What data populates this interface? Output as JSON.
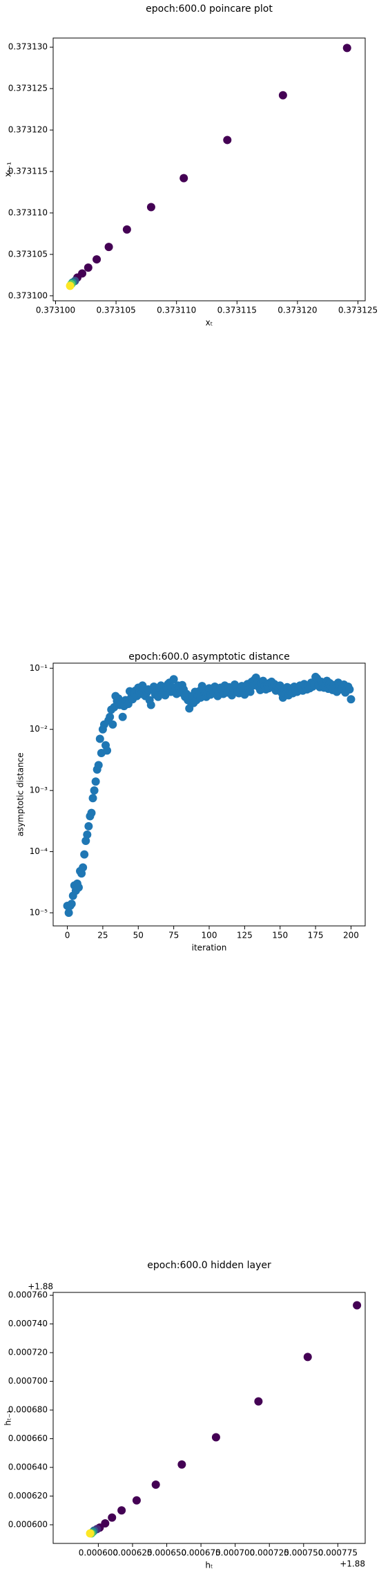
{
  "chart_data": [
    {
      "type": "scatter",
      "title": "epoch:600.0 poincare plot",
      "x_label": "xₜ",
      "y_label": "xₜ₋₁",
      "x": [
        0.3731241,
        0.3731188,
        0.3731142,
        0.3731106,
        0.3731079,
        0.3731059,
        0.3731044,
        0.3731034,
        0.3731027,
        0.3731022,
        0.3731018,
        0.3731016,
        0.3731014,
        0.3731013,
        0.3731012
      ],
      "values": [
        0.3731299,
        0.3731242,
        0.3731188,
        0.3731142,
        0.3731107,
        0.373108,
        0.3731059,
        0.3731044,
        0.3731034,
        0.3731027,
        0.3731022,
        0.3731018,
        0.3731016,
        0.3731014,
        0.3731012
      ],
      "colors": [
        "#440154",
        "#440154",
        "#440154",
        "#440154",
        "#440154",
        "#440154",
        "#440154",
        "#440154",
        "#440154",
        "#440154",
        "#440154",
        "#3b528b",
        "#21918c",
        "#5ec962",
        "#fde725"
      ],
      "xlim": [
        0.3730998,
        0.3731256
      ],
      "ylim": [
        0.3730994,
        0.3731311
      ],
      "xticks": [
        {
          "value": 0.3731,
          "label": "0.373100"
        },
        {
          "value": 0.373105,
          "label": "0.373105"
        },
        {
          "value": 0.37311,
          "label": "0.373110"
        },
        {
          "value": 0.373115,
          "label": "0.373115"
        },
        {
          "value": 0.37312,
          "label": "0.373120"
        },
        {
          "value": 0.373125,
          "label": "0.373125"
        }
      ],
      "yticks": [
        {
          "value": 0.3731,
          "label": "0.373100"
        },
        {
          "value": 0.373105,
          "label": "0.373105"
        },
        {
          "value": 0.37311,
          "label": "0.373110"
        },
        {
          "value": 0.373115,
          "label": "0.373115"
        },
        {
          "value": 0.37312,
          "label": "0.373120"
        },
        {
          "value": 0.373125,
          "label": "0.373125"
        },
        {
          "value": 0.37313,
          "label": "0.373130"
        }
      ]
    },
    {
      "type": "scatter",
      "title": "epoch:600.0 asymptotic distance",
      "x_label": "iteration",
      "y_label": "asymptotic distance",
      "log_y": true,
      "color": "#1f77b4",
      "x": [
        0,
        1,
        2,
        3,
        4,
        5,
        6,
        7,
        8,
        9,
        10,
        11,
        12,
        13,
        14,
        15,
        16,
        17,
        18,
        19,
        20,
        21,
        22,
        23,
        24,
        25,
        26,
        27,
        28,
        29,
        30,
        31,
        32,
        33,
        34,
        35,
        36,
        37,
        38,
        39,
        40,
        41,
        42,
        43,
        44,
        45,
        46,
        47,
        48,
        49,
        50,
        51,
        52,
        53,
        54,
        55,
        56,
        57,
        58,
        59,
        60,
        61,
        62,
        63,
        64,
        65,
        66,
        67,
        68,
        69,
        70,
        71,
        72,
        73,
        74,
        75,
        76,
        77,
        78,
        79,
        80,
        81,
        82,
        83,
        84,
        85,
        86,
        87,
        88,
        89,
        90,
        91,
        92,
        93,
        94,
        95,
        96,
        97,
        98,
        99,
        100,
        101,
        102,
        103,
        104,
        105,
        106,
        107,
        108,
        109,
        110,
        111,
        112,
        113,
        114,
        115,
        116,
        117,
        118,
        119,
        120,
        121,
        122,
        123,
        124,
        125,
        126,
        127,
        128,
        129,
        130,
        131,
        132,
        133,
        134,
        135,
        136,
        137,
        138,
        139,
        140,
        141,
        142,
        143,
        144,
        145,
        146,
        147,
        148,
        149,
        150,
        151,
        152,
        153,
        154,
        155,
        156,
        157,
        158,
        159,
        160,
        161,
        162,
        163,
        164,
        165,
        166,
        167,
        168,
        169,
        170,
        171,
        172,
        173,
        174,
        175,
        176,
        177,
        178,
        179,
        180,
        181,
        182,
        183,
        184,
        185,
        186,
        187,
        188,
        189,
        190,
        191,
        192,
        193,
        194,
        195,
        196,
        197,
        198,
        199,
        200
      ],
      "values": [
        1.3e-05,
        1e-05,
        1.3e-05,
        1.4e-05,
        1.9e-05,
        2.8e-05,
        2.3e-05,
        3e-05,
        2.6e-05,
        4.8e-05,
        4.4e-05,
        5.5e-05,
        9e-05,
        0.00015,
        0.00019,
        0.00026,
        0.00038,
        0.00043,
        0.00075,
        0.001,
        0.0014,
        0.0022,
        0.0026,
        0.007,
        0.0041,
        0.01,
        0.012,
        0.0055,
        0.0045,
        0.014,
        0.016,
        0.021,
        0.012,
        0.023,
        0.035,
        0.029,
        0.032,
        0.025,
        0.026,
        0.016,
        0.024,
        0.03,
        0.028,
        0.026,
        0.042,
        0.033,
        0.031,
        0.039,
        0.043,
        0.035,
        0.048,
        0.041,
        0.038,
        0.052,
        0.046,
        0.035,
        0.04,
        0.045,
        0.03,
        0.025,
        0.044,
        0.05,
        0.037,
        0.042,
        0.034,
        0.047,
        0.052,
        0.039,
        0.043,
        0.036,
        0.048,
        0.055,
        0.058,
        0.041,
        0.049,
        0.066,
        0.044,
        0.038,
        0.052,
        0.047,
        0.04,
        0.053,
        0.045,
        0.034,
        0.038,
        0.03,
        0.022,
        0.028,
        0.035,
        0.027,
        0.041,
        0.03,
        0.036,
        0.042,
        0.033,
        0.051,
        0.045,
        0.038,
        0.034,
        0.04,
        0.047,
        0.037,
        0.043,
        0.039,
        0.05,
        0.046,
        0.035,
        0.041,
        0.048,
        0.044,
        0.038,
        0.052,
        0.045,
        0.04,
        0.049,
        0.043,
        0.036,
        0.047,
        0.054,
        0.05,
        0.042,
        0.039,
        0.045,
        0.051,
        0.043,
        0.037,
        0.048,
        0.055,
        0.046,
        0.041,
        0.06,
        0.052,
        0.065,
        0.07,
        0.058,
        0.049,
        0.044,
        0.056,
        0.062,
        0.051,
        0.045,
        0.053,
        0.047,
        0.058,
        0.06,
        0.049,
        0.055,
        0.043,
        0.05,
        0.046,
        0.052,
        0.04,
        0.033,
        0.045,
        0.038,
        0.049,
        0.036,
        0.042,
        0.047,
        0.039,
        0.05,
        0.044,
        0.041,
        0.048,
        0.052,
        0.046,
        0.043,
        0.055,
        0.049,
        0.045,
        0.051,
        0.047,
        0.058,
        0.05,
        0.054,
        0.072,
        0.068,
        0.053,
        0.049,
        0.06,
        0.055,
        0.048,
        0.052,
        0.062,
        0.046,
        0.057,
        0.05,
        0.044,
        0.053,
        0.047,
        0.041,
        0.058,
        0.052,
        0.045,
        0.049,
        0.054,
        0.04,
        0.046,
        0.05,
        0.045,
        0.031
      ],
      "xlim": [
        -10,
        210
      ],
      "ylim": [
        6.1e-06,
        0.121
      ],
      "xticks": [
        0,
        25,
        50,
        75,
        100,
        125,
        150,
        175,
        200
      ],
      "yticks": [
        {
          "value": 1e-05,
          "label": "10⁻⁵"
        },
        {
          "value": 0.0001,
          "label": "10⁻⁴"
        },
        {
          "value": 0.001,
          "label": "10⁻³"
        },
        {
          "value": 0.01,
          "label": "10⁻²"
        },
        {
          "value": 0.1,
          "label": "10⁻¹"
        }
      ]
    },
    {
      "type": "scatter",
      "title": "epoch:600.0 hidden layer",
      "x_label": "hₜ",
      "y_label": "hₜ₋₁",
      "x_offset": "+1.88",
      "y_offset": "+1.88",
      "x": [
        0.000789,
        0.000753,
        0.000717,
        0.000686,
        0.000661,
        0.000642,
        0.000628,
        0.000617,
        0.00061,
        0.000605,
        0.000601,
        0.000599,
        0.000597,
        0.000596,
        0.000595,
        0.000594
      ],
      "values": [
        0.000753,
        0.000717,
        0.000686,
        0.000661,
        0.000642,
        0.000628,
        0.000617,
        0.00061,
        0.000605,
        0.000601,
        0.000598,
        0.000597,
        0.000596,
        0.000595,
        0.000594,
        0.000594
      ],
      "colors": [
        "#440154",
        "#440154",
        "#440154",
        "#440154",
        "#440154",
        "#440154",
        "#440154",
        "#440154",
        "#440154",
        "#440154",
        "#440154",
        "#482878",
        "#3b528b",
        "#21918c",
        "#5ec962",
        "#fde725"
      ],
      "xlim": [
        0.000567,
        0.000795
      ],
      "ylim": [
        0.000587,
        0.000762
      ],
      "xticks": [
        {
          "value": 0.0006,
          "label": "0.000600"
        },
        {
          "value": 0.000625,
          "label": "0.000625"
        },
        {
          "value": 0.00065,
          "label": "0.000650"
        },
        {
          "value": 0.000675,
          "label": "0.000675"
        },
        {
          "value": 0.0007,
          "label": "0.000700"
        },
        {
          "value": 0.000725,
          "label": "0.000725"
        },
        {
          "value": 0.00075,
          "label": "0.000750"
        },
        {
          "value": 0.000775,
          "label": "0.000775"
        }
      ],
      "yticks": [
        {
          "value": 0.0006,
          "label": "0.000600"
        },
        {
          "value": 0.00062,
          "label": "0.000620"
        },
        {
          "value": 0.00064,
          "label": "0.000640"
        },
        {
          "value": 0.00066,
          "label": "0.000660"
        },
        {
          "value": 0.00068,
          "label": "0.000680"
        },
        {
          "value": 0.0007,
          "label": "0.000700"
        },
        {
          "value": 0.00072,
          "label": "0.000720"
        },
        {
          "value": 0.00074,
          "label": "0.000740"
        },
        {
          "value": 0.00076,
          "label": "0.000760"
        }
      ]
    }
  ]
}
